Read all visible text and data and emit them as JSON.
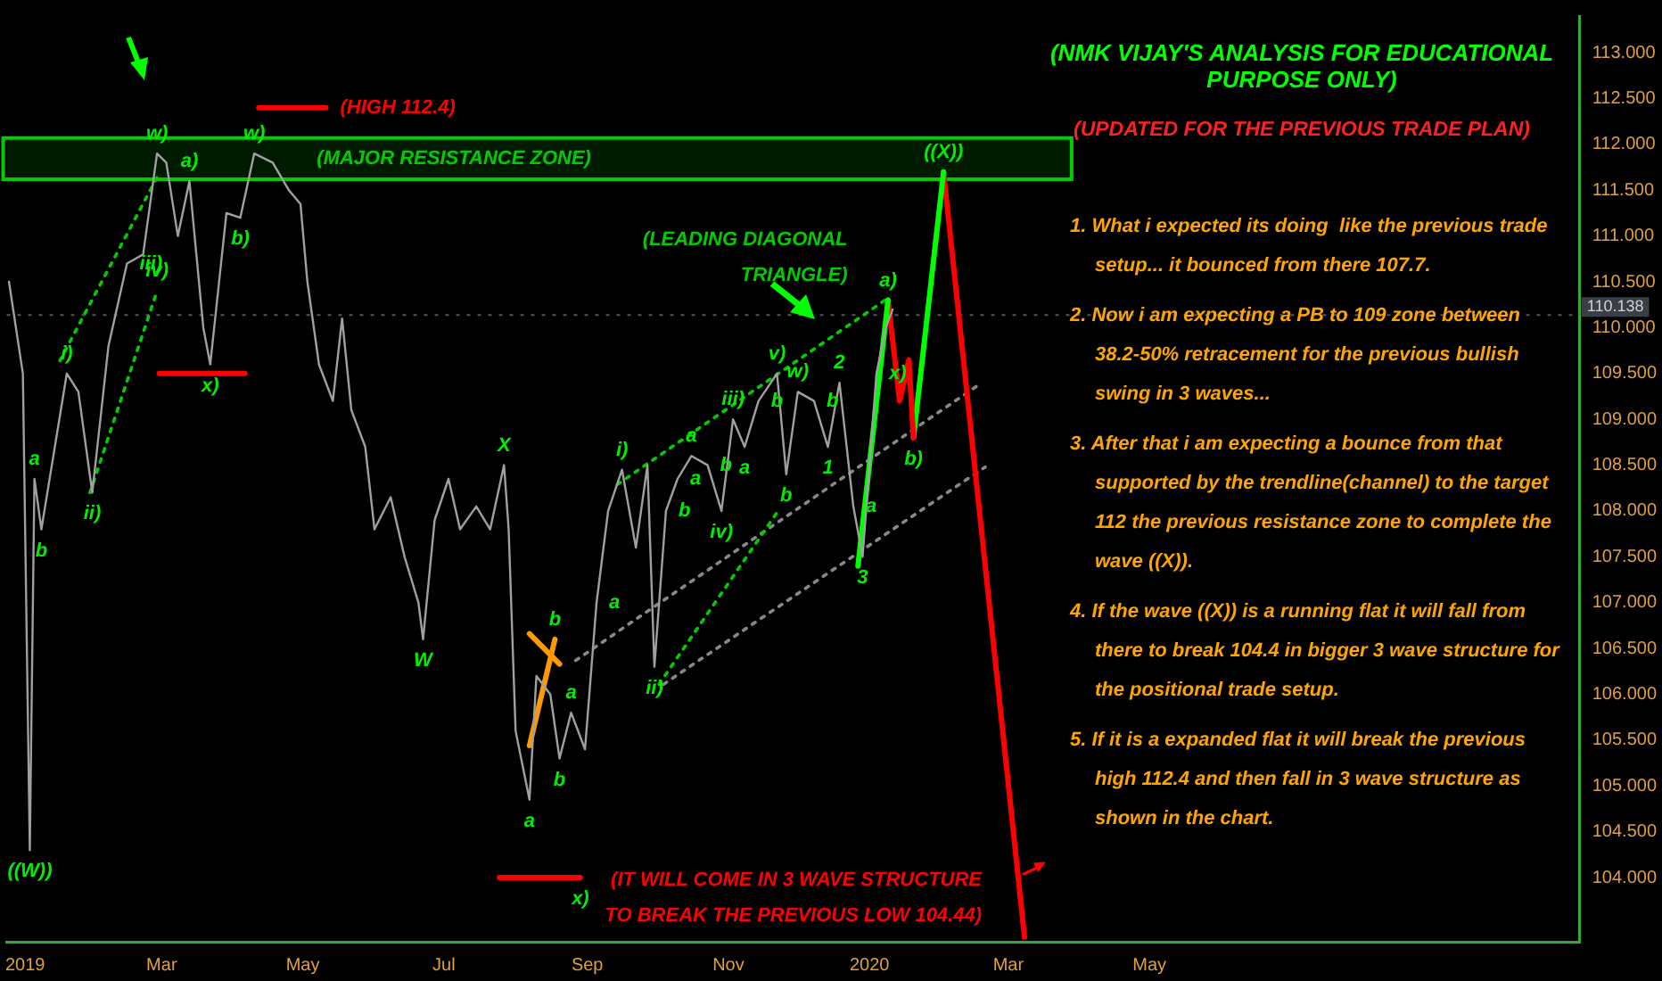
{
  "chart_data": {
    "type": "line",
    "title": "(NMK VIJAY'S ANALYSIS FOR EDUCATIONAL PURPOSE ONLY)",
    "subtitle": "(UPDATED FOR THE PREVIOUS TRADE PLAN)",
    "xlim": [
      "2018-12-24",
      "2020-11-03"
    ],
    "xticks": [
      {
        "value": "2019-01-01",
        "label": "2019"
      },
      {
        "value": "2019-03-01",
        "label": "Mar"
      },
      {
        "value": "2019-05-01",
        "label": "May"
      },
      {
        "value": "2019-07-01",
        "label": "Jul"
      },
      {
        "value": "2019-09-01",
        "label": "Sep"
      },
      {
        "value": "2019-11-01",
        "label": "Nov"
      },
      {
        "value": "2020-01-01",
        "label": "2020"
      },
      {
        "value": "2020-03-01",
        "label": "Mar"
      },
      {
        "value": "2020-05-01",
        "label": "May"
      }
    ],
    "ylim": [
      103.3,
      113.4
    ],
    "yticks": [
      {
        "value": 104,
        "label": "104.000"
      },
      {
        "value": 104.5,
        "label": "104.500"
      },
      {
        "value": 105,
        "label": "105.000"
      },
      {
        "value": 105.5,
        "label": "105.500"
      },
      {
        "value": 106,
        "label": "106.000"
      },
      {
        "value": 106.5,
        "label": "106.500"
      },
      {
        "value": 107,
        "label": "107.000"
      },
      {
        "value": 107.5,
        "label": "107.500"
      },
      {
        "value": 108,
        "label": "108.000"
      },
      {
        "value": 108.5,
        "label": "108.500"
      },
      {
        "value": 109,
        "label": "109.000"
      },
      {
        "value": 109.5,
        "label": "109.500"
      },
      {
        "value": 110,
        "label": "110.000"
      },
      {
        "value": 110.5,
        "label": "110.500"
      },
      {
        "value": 111,
        "label": "111.000"
      },
      {
        "value": 111.5,
        "label": "111.500"
      },
      {
        "value": 112,
        "label": "112.000"
      },
      {
        "value": 112.5,
        "label": "112.500"
      },
      {
        "value": 113,
        "label": "113.000"
      }
    ],
    "grid": false,
    "legend": false,
    "marker": "none",
    "series": [
      {
        "color": "#a0a0a0",
        "x": [
          "2018-12-25",
          "2018-12-31",
          "2019-01-03",
          "2019-01-05",
          "2019-01-08",
          "2019-01-19",
          "2019-01-24",
          "2019-01-30",
          "2019-02-06",
          "2019-02-14",
          "2019-02-21",
          "2019-02-27",
          "2019-03-03",
          "2019-03-08",
          "2019-03-13",
          "2019-03-19",
          "2019-03-22",
          "2019-03-29",
          "2019-04-04",
          "2019-04-10",
          "2019-04-18",
          "2019-04-25",
          "2019-04-30",
          "2019-05-03",
          "2019-05-08",
          "2019-05-14",
          "2019-05-18",
          "2019-05-22",
          "2019-05-28",
          "2019-06-01",
          "2019-06-08",
          "2019-06-14",
          "2019-06-20",
          "2019-06-22",
          "2019-06-27",
          "2019-07-03",
          "2019-07-08",
          "2019-07-15",
          "2019-07-21",
          "2019-07-27",
          "2019-07-29",
          "2019-08-01",
          "2019-08-07",
          "2019-08-10",
          "2019-08-16",
          "2019-08-20",
          "2019-08-25",
          "2019-08-31",
          "2019-09-05",
          "2019-09-10",
          "2019-09-16",
          "2019-09-22",
          "2019-09-27",
          "2019-09-30",
          "2019-10-05",
          "2019-10-10",
          "2019-10-16",
          "2019-10-23",
          "2019-10-29",
          "2019-11-03",
          "2019-11-08",
          "2019-11-14",
          "2019-11-22",
          "2019-11-26",
          "2019-12-01",
          "2019-12-08",
          "2019-12-14",
          "2019-12-19",
          "2019-12-25",
          "2019-12-29",
          "2020-01-04",
          "2020-01-08",
          "2020-01-11"
        ],
        "values": [
          110.5,
          109.5,
          104.3,
          108.35,
          107.8,
          109.5,
          109.3,
          108.2,
          109.8,
          110.7,
          110.8,
          111.9,
          111.8,
          111.0,
          111.6,
          110.0,
          109.6,
          111.25,
          111.2,
          111.9,
          111.8,
          111.5,
          111.35,
          110.5,
          109.6,
          109.2,
          110.1,
          109.1,
          108.7,
          107.8,
          108.15,
          107.5,
          107.0,
          106.6,
          107.9,
          108.35,
          107.8,
          108.05,
          107.8,
          108.5,
          107.8,
          105.6,
          104.85,
          106.2,
          106.0,
          105.3,
          105.8,
          105.4,
          107.0,
          108.0,
          108.45,
          107.6,
          108.5,
          106.3,
          108.0,
          108.35,
          108.6,
          108.5,
          108.0,
          109.0,
          108.7,
          109.2,
          109.5,
          108.4,
          109.3,
          109.2,
          108.7,
          109.4,
          108.05,
          107.5,
          109.5,
          110.0,
          110.2
        ]
      },
      {
        "color": "#00ff00",
        "x": [
          "2019-12-27",
          "2020-01-09"
        ],
        "values": [
          107.4,
          110.3
        ]
      },
      {
        "color": "#ff0000",
        "x": [
          "2020-01-09",
          "2020-01-14",
          "2020-01-18",
          "2020-01-20"
        ],
        "values": [
          110.3,
          109.2,
          109.65,
          108.8
        ]
      },
      {
        "color": "#00ff00",
        "x": [
          "2020-01-20",
          "2020-02-02"
        ],
        "values": [
          108.8,
          111.7
        ]
      },
      {
        "color": "#ff0000",
        "x": [
          "2020-02-02",
          "2020-03-08"
        ],
        "values": [
          111.7,
          103.35
        ]
      },
      {
        "name": "(HIGH 112.4)",
        "color": "#ff0000",
        "x": [
          "2019-04-12",
          "2019-05-11"
        ],
        "values": [
          112.4,
          112.4
        ]
      },
      {
        "color": "#ff0000",
        "x": [
          "2019-02-28",
          "2019-04-06"
        ],
        "values": [
          109.5,
          109.5
        ]
      },
      {
        "color": "#ff0000",
        "x": [
          "2019-07-25",
          "2019-08-29"
        ],
        "values": [
          104.0,
          104.0
        ]
      },
      {
        "color": "#ff9900",
        "x": [
          "2019-08-07",
          "2019-08-18"
        ],
        "values": [
          105.44,
          106.6
        ]
      },
      {
        "color": "#ff9900",
        "x": [
          "2019-08-07",
          "2019-08-20"
        ],
        "values": [
          106.66,
          106.33
        ]
      },
      {
        "color": "#00cc00",
        "line_style": "dotted",
        "x": [
          "2019-01-16",
          "2019-02-27"
        ],
        "values": [
          109.64,
          111.64
        ]
      },
      {
        "color": "#00cc00",
        "line_style": "dotted",
        "x": [
          "2019-01-29",
          "2019-02-27"
        ],
        "values": [
          108.2,
          110.4
        ]
      },
      {
        "name": "(LEADING DIAGONAL TRIANGLE)",
        "color": "#00cc00",
        "line_style": "dotted",
        "x": [
          "2019-09-14",
          "2020-01-10"
        ],
        "values": [
          108.29,
          110.34
        ]
      },
      {
        "color": "#00cc00",
        "line_style": "dotted",
        "x": [
          "2019-10-02",
          "2019-11-23"
        ],
        "values": [
          106.11,
          108.02
        ]
      },
      {
        "color": "#888888",
        "line_style": "dotted",
        "x": [
          "2019-08-27",
          "2020-02-18"
        ],
        "values": [
          106.37,
          109.39
        ]
      },
      {
        "color": "#888888",
        "line_style": "dotted",
        "x": [
          "2019-10-04",
          "2020-02-20"
        ],
        "values": [
          106.11,
          108.48
        ]
      }
    ],
    "bands": [
      {
        "axis": "y",
        "from": 111.62,
        "to": 112.07,
        "label": "(MAJOR RESISTANCE ZONE)",
        "color": "#00cc00"
      }
    ],
    "ref_lines": [
      {
        "axis": "y",
        "value": 110.138,
        "label": "110.138",
        "color": "#555555",
        "line_style": "dotted"
      }
    ],
    "annotations": [
      {
        "text": "w)",
        "x": "2019-02-27",
        "y": 111.9
      },
      {
        "text": "w)",
        "x": "2019-04-10",
        "y": 111.9
      },
      {
        "text": "a)",
        "x": "2019-03-13",
        "y": 111.6
      },
      {
        "text": "iii)",
        "x": "2019-02-14",
        "y": 110.7
      },
      {
        "text": "i)",
        "x": "2019-01-19",
        "y": 109.5
      },
      {
        "text": "iv)",
        "x": "2019-02-27",
        "y": 110.4
      },
      {
        "text": "b)",
        "x": "2019-04-04",
        "y": 111.2
      },
      {
        "text": "x)",
        "x": "2019-03-22",
        "y": 109.6
      },
      {
        "text": "a",
        "x": "2019-01-05",
        "y": 108.35
      },
      {
        "text": "ii)",
        "x": "2019-01-30",
        "y": 108.2
      },
      {
        "text": "b",
        "x": "2019-01-08",
        "y": 107.8
      },
      {
        "text": "((W))",
        "x": "2019-01-03",
        "y": 104.3
      },
      {
        "text": "X",
        "x": "2019-07-27",
        "y": 108.5
      },
      {
        "text": "W",
        "x": "2019-06-22",
        "y": 106.6
      },
      {
        "text": "a",
        "x": "2019-08-07",
        "y": 104.85
      },
      {
        "text": "b",
        "x": "2019-08-18",
        "y": 106.6
      },
      {
        "text": "a",
        "x": "2019-08-25",
        "y": 105.8
      },
      {
        "text": "b",
        "x": "2019-08-20",
        "y": 105.3
      },
      {
        "text": "x)",
        "x": "2019-08-29",
        "y": 104.0
      },
      {
        "text": "a",
        "x": "2019-09-05",
        "y": 107.0
      },
      {
        "text": "ii)",
        "x": "2019-09-30",
        "y": 106.3
      },
      {
        "text": "i)",
        "x": "2019-09-16",
        "y": 108.45
      },
      {
        "text": "b",
        "x": "2019-10-05",
        "y": 108.0
      },
      {
        "text": "a",
        "x": "2019-10-10",
        "y": 108.35
      },
      {
        "text": "iii)",
        "x": "2019-11-03",
        "y": 109.0
      },
      {
        "text": "b",
        "x": "2019-11-14",
        "y": 109.2
      },
      {
        "text": "a",
        "x": "2019-11-08",
        "y": 108.7
      },
      {
        "text": "a",
        "x": "2019-10-16",
        "y": 108.6
      },
      {
        "text": "v)",
        "x": "2019-11-22",
        "y": 109.5
      },
      {
        "text": "w)",
        "x": "2019-12-01",
        "y": 109.3
      },
      {
        "text": "b",
        "x": "2019-12-08",
        "y": 109.2
      },
      {
        "text": "2",
        "x": "2019-12-19",
        "y": 109.4
      },
      {
        "text": "1",
        "x": "2019-12-14",
        "y": 108.7
      },
      {
        "text": "a)",
        "x": "2020-01-09",
        "y": 110.3
      },
      {
        "text": "b)",
        "x": "2020-01-20",
        "y": 108.8
      },
      {
        "text": "((X))",
        "x": "2020-02-02",
        "y": 111.7
      },
      {
        "text": "3",
        "x": "2019-12-29",
        "y": 107.5
      },
      {
        "text": "x)",
        "x": "2020-01-04",
        "y": 109.5
      },
      {
        "text": "iv)",
        "x": "2019-10-29",
        "y": 108.0
      },
      {
        "text": "b",
        "x": "2019-11-26",
        "y": 108.4
      },
      {
        "text": "a",
        "x": "2019-12-25",
        "y": 108.05
      },
      {
        "text": "b",
        "x": "2019-10-23",
        "y": 108.5
      },
      {
        "text": "(IT WILL COME IN 3 WAVE STRUCTURE TO BREAK THE PREVIOUS LOW 104.44)",
        "x": "2020-03-08",
        "y": 103.35
      },
      "1. What i expected its doing  like the previous trade setup... it bounced from there 107.7.",
      "2. Now i am expecting a PB to 109 zone between 38.2-50% retracement for the previous bullish swing in 3 waves...",
      "3. After that i am expecting a bounce from that supported by the trendline(channel) to the target 112 the previous resistance zone to complete the wave ((X)).",
      "4. If the wave ((X)) is a running flat it will fall from there to break 104.4 in bigger 3 wave structure for the positional trade setup.",
      "5. If it is a expanded flat it will break the previous high 112.4 and then fall in 3 wave structure as shown in the chart."
    ]
  }
}
